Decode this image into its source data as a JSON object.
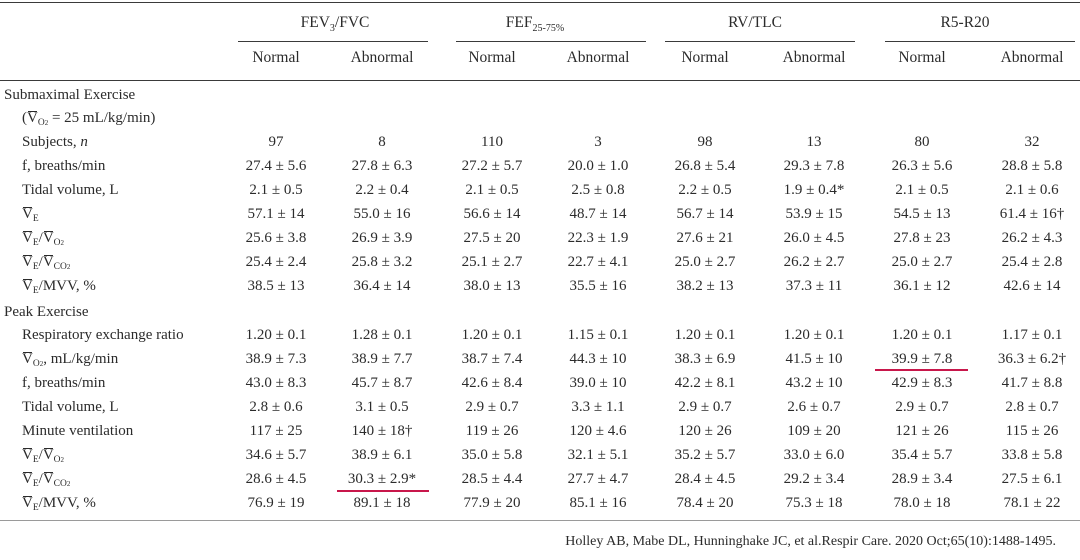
{
  "columns": {
    "groups": [
      {
        "label": "FEV",
        "sub": "3",
        "suffix": "/FVC"
      },
      {
        "label": "FEF",
        "sub": "25-75%",
        "suffix": ""
      },
      {
        "label": "RV/TLC",
        "sub": "",
        "suffix": ""
      },
      {
        "label": "R5-R20",
        "sub": "",
        "suffix": ""
      }
    ],
    "normal": "Normal",
    "abnormal": "Abnormal"
  },
  "sections": {
    "submax_title": "Submaximal Exercise",
    "submax_cond_v": "V",
    "submax_cond_sub": "O",
    "submax_cond_sub2": "2",
    "submax_cond_rest": " = 25 mL/kg/min)",
    "peak_title": "Peak Exercise"
  },
  "rows": [
    {
      "label": "Subjects, n",
      "values": [
        "97",
        "8",
        "110",
        "3",
        "98",
        "13",
        "80",
        "32"
      ]
    },
    {
      "label": "f, breaths/min",
      "values": [
        "27.4 ± 5.6",
        "27.8 ± 6.3",
        "27.2 ± 5.7",
        "20.0 ± 1.0",
        "26.8 ± 5.4",
        "29.3 ± 7.8",
        "26.3 ± 5.6",
        "28.8 ± 5.8"
      ]
    },
    {
      "label": "Tidal volume, L",
      "values": [
        "2.1 ± 0.5",
        "2.2 ± 0.4",
        "2.1 ± 0.5",
        "2.5 ± 0.8",
        "2.2 ± 0.5",
        "1.9 ± 0.4*",
        "2.1 ± 0.5",
        "2.1 ± 0.6"
      ]
    },
    {
      "label": "VE",
      "values": [
        "57.1 ± 14",
        "55.0 ± 16",
        "56.6 ± 14",
        "48.7 ± 14",
        "56.7 ± 14",
        "53.9 ± 15",
        "54.5 ± 13",
        "61.4 ± 16†"
      ]
    },
    {
      "label": "VE/VO2",
      "values": [
        "25.6 ± 3.8",
        "26.9 ± 3.9",
        "27.5 ± 20",
        "22.3 ± 1.9",
        "27.6 ± 21",
        "26.0 ± 4.5",
        "27.8 ± 23",
        "26.2 ± 4.3"
      ]
    },
    {
      "label": "VE/VCO2",
      "values": [
        "25.4 ± 2.4",
        "25.8 ± 3.2",
        "25.1 ± 2.7",
        "22.7 ± 4.1",
        "25.0 ± 2.7",
        "26.2 ± 2.7",
        "25.0 ± 2.7",
        "25.4 ± 2.8"
      ]
    },
    {
      "label": "VE/MVV, %",
      "values": [
        "38.5 ± 13",
        "36.4 ± 14",
        "38.0 ± 13",
        "35.5 ± 16",
        "38.2 ± 13",
        "37.3 ± 11",
        "36.1 ± 12",
        "42.6 ± 14"
      ]
    },
    {
      "label": "Respiratory exchange ratio",
      "values": [
        "1.20 ± 0.1",
        "1.28 ± 0.1",
        "1.20 ± 0.1",
        "1.15 ± 0.1",
        "1.20 ± 0.1",
        "1.20 ± 0.1",
        "1.20 ± 0.1",
        "1.17 ± 0.1"
      ]
    },
    {
      "label": "VO2, mL/kg/min",
      "values": [
        "38.9 ± 7.3",
        "38.9 ± 7.7",
        "38.7 ± 7.4",
        "44.3 ± 10",
        "38.3 ± 6.9",
        "41.5 ± 10",
        "39.9 ± 7.8",
        "36.3 ± 6.2†"
      ]
    },
    {
      "label": "f, breaths/min",
      "values": [
        "43.0 ± 8.3",
        "45.7 ± 8.7",
        "42.6 ± 8.4",
        "39.0 ± 10",
        "42.2 ± 8.1",
        "43.2 ± 10",
        "42.9 ± 8.3",
        "41.7 ± 8.8"
      ]
    },
    {
      "label": "Tidal volume, L",
      "values": [
        "2.8 ± 0.6",
        "3.1 ± 0.5",
        "2.9 ± 0.7",
        "3.3 ± 1.1",
        "2.9 ± 0.7",
        "2.6 ± 0.7",
        "2.9 ± 0.7",
        "2.8 ± 0.7"
      ]
    },
    {
      "label": "Minute ventilation",
      "values": [
        "117 ± 25",
        "140 ± 18†",
        "119 ± 26",
        "120 ± 4.6",
        "120 ± 26",
        "109 ± 20",
        "121 ± 26",
        "115 ± 26"
      ]
    },
    {
      "label": "VE/VO2",
      "values": [
        "34.6 ± 5.7",
        "38.9 ± 6.1",
        "35.0 ± 5.8",
        "32.1 ± 5.1",
        "35.2 ± 5.7",
        "33.0 ± 6.0",
        "35.4 ± 5.7",
        "33.8 ± 5.8"
      ]
    },
    {
      "label": "VE/VCO2",
      "values": [
        "28.6 ± 4.5",
        "30.3 ± 2.9*",
        "28.5 ± 4.4",
        "27.7 ± 4.7",
        "28.4 ± 4.5",
        "29.2 ± 3.4",
        "28.9 ± 3.4",
        "27.5 ± 6.1"
      ]
    },
    {
      "label": "VE/MVV, %",
      "values": [
        "76.9 ± 19",
        "89.1 ± 18",
        "77.9 ± 20",
        "85.1 ± 16",
        "78.4 ± 20",
        "75.3 ± 18",
        "78.0 ± 18",
        "78.1 ± 22"
      ]
    }
  ],
  "highlight_color": "#c8174b",
  "citation": "Holley AB, Mabe DL, Hunninghake JC, et al.Respir Care. 2020 Oct;65(10):1488-1495."
}
